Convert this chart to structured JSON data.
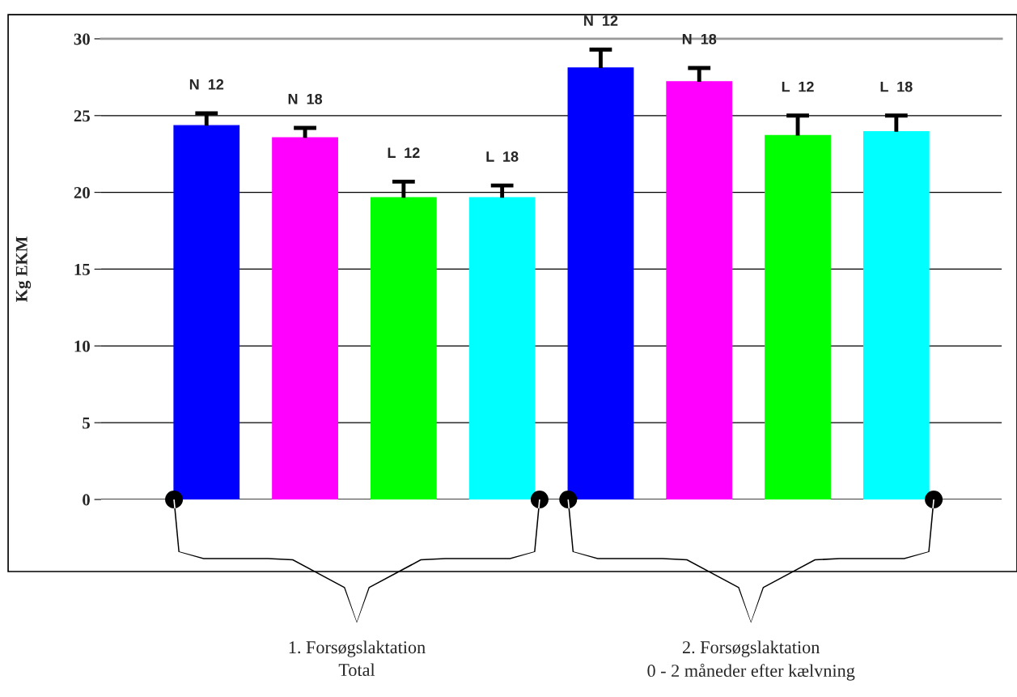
{
  "chart_data": {
    "type": "bar",
    "ylabel": "Kg EKM",
    "categories": [
      "N  12",
      "N  18",
      "L  12",
      "L  18",
      "N  12",
      "N  18",
      "L  12",
      "L  18"
    ],
    "values": [
      24.35,
      23.55,
      19.65,
      19.65,
      28.1,
      27.2,
      23.7,
      23.95
    ],
    "colors": [
      "#0000ff",
      "#ff00ff",
      "#00ff00",
      "#00ffff",
      "#0000ff",
      "#ff00ff",
      "#00ff00",
      "#00ffff"
    ],
    "errors": [
      [
        24.35,
        25.15
      ],
      [
        23.55,
        24.2
      ],
      [
        19.65,
        20.7
      ],
      [
        19.65,
        20.45
      ],
      [
        28.1,
        29.3
      ],
      [
        27.2,
        28.1
      ],
      [
        23.7,
        25.0
      ],
      [
        23.95,
        25.0
      ]
    ],
    "ylim": [
      0,
      30
    ],
    "yticks": [
      0,
      5,
      10,
      15,
      20,
      25,
      30
    ],
    "grid": "y",
    "annotations": [
      "1. Forsøgslaktation\nTotal",
      "2. Forsøgslaktation\n0 - 2 måneder efter kælvning"
    ]
  }
}
